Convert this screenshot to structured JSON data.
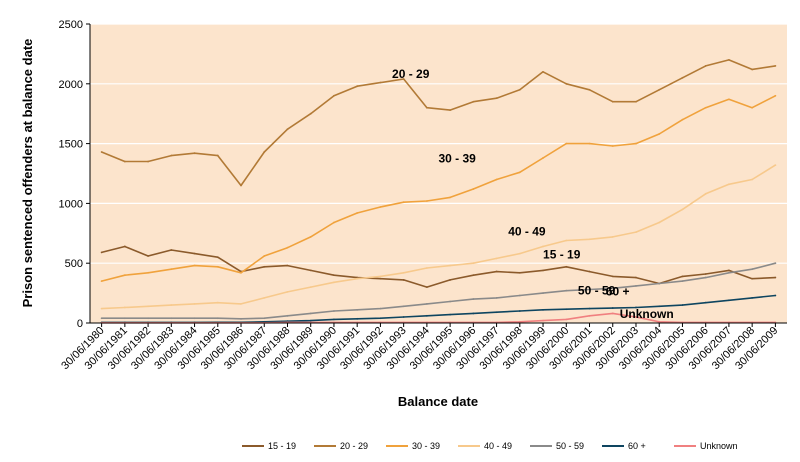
{
  "chart_data": {
    "type": "line",
    "title": "",
    "xlabel": "Balance date",
    "ylabel": "Prison sentenced offenders at balance date",
    "ylim": [
      0,
      2500
    ],
    "yticks": [
      0,
      500,
      1000,
      1500,
      2000,
      2500
    ],
    "grid": true,
    "legend_position": "bottom",
    "x": [
      "30/06/1980",
      "30/06/1981",
      "30/06/1982",
      "30/06/1983",
      "30/06/1984",
      "30/06/1985",
      "30/06/1986",
      "30/06/1987",
      "30/06/1988",
      "30/06/1989",
      "30/06/1990",
      "30/06/1991",
      "30/06/1992",
      "30/06/1993",
      "30/06/1994",
      "30/06/1995",
      "30/06/1996",
      "30/06/1997",
      "30/06/1998",
      "30/06/1999",
      "30/06/2000",
      "30/06/2001",
      "30/06/2002",
      "30/06/2003",
      "30/06/2004",
      "30/06/2005",
      "30/06/2006",
      "30/06/2007",
      "30/06/2008",
      "30/06/2009"
    ],
    "series": [
      {
        "name": "15 - 19",
        "label": "15 - 19",
        "color": "#8B5A2B",
        "values": [
          590,
          640,
          560,
          610,
          580,
          550,
          430,
          470,
          480,
          440,
          400,
          380,
          370,
          360,
          300,
          360,
          400,
          430,
          420,
          440,
          470,
          430,
          390,
          380,
          330,
          390,
          410,
          440,
          370,
          380
        ]
      },
      {
        "name": "20 - 29",
        "label": "20 - 29",
        "color": "#B27A36",
        "values": [
          1430,
          1350,
          1350,
          1400,
          1420,
          1400,
          1150,
          1430,
          1620,
          1750,
          1900,
          1980,
          2010,
          2040,
          1800,
          1780,
          1850,
          1880,
          1950,
          2100,
          2000,
          1950,
          1850,
          1850,
          1950,
          2050,
          2150,
          2200,
          2120,
          2150
        ]
      },
      {
        "name": "30 - 39",
        "label": "30 - 39",
        "color": "#F0A23C",
        "values": [
          350,
          400,
          420,
          450,
          480,
          470,
          420,
          560,
          630,
          720,
          840,
          920,
          970,
          1010,
          1020,
          1050,
          1120,
          1200,
          1260,
          1380,
          1500,
          1500,
          1480,
          1500,
          1580,
          1700,
          1800,
          1870,
          1800,
          1900
        ]
      },
      {
        "name": "40 - 49",
        "label": "40 - 49",
        "color": "#F7C98C",
        "values": [
          120,
          130,
          140,
          150,
          160,
          170,
          160,
          210,
          260,
          300,
          340,
          370,
          390,
          420,
          460,
          480,
          500,
          540,
          580,
          640,
          690,
          700,
          720,
          760,
          840,
          950,
          1080,
          1160,
          1200,
          1320
        ]
      },
      {
        "name": "50 - 59",
        "label": "50 - 59",
        "color": "#8A8A8A",
        "values": [
          40,
          40,
          40,
          40,
          40,
          40,
          35,
          40,
          60,
          80,
          100,
          110,
          120,
          140,
          160,
          180,
          200,
          210,
          230,
          250,
          270,
          280,
          290,
          310,
          330,
          350,
          380,
          420,
          450,
          500
        ]
      },
      {
        "name": "60 +",
        "label": "60 +",
        "color": "#0E4560",
        "values": [
          5,
          5,
          5,
          5,
          5,
          6,
          6,
          10,
          15,
          20,
          30,
          35,
          40,
          50,
          60,
          70,
          80,
          90,
          100,
          110,
          115,
          120,
          125,
          130,
          140,
          150,
          170,
          190,
          210,
          230
        ]
      },
      {
        "name": "Unknown",
        "label": "Unknown",
        "color": "#F08080",
        "values": [
          2,
          2,
          2,
          2,
          2,
          2,
          2,
          2,
          5,
          5,
          5,
          5,
          5,
          5,
          5,
          5,
          5,
          5,
          10,
          20,
          30,
          60,
          80,
          50,
          10,
          5,
          5,
          5,
          5,
          5
        ]
      }
    ],
    "series_labels": [
      {
        "series": "20 - 29",
        "text": "20 - 29",
        "x_index": 12.5,
        "y": 2050
      },
      {
        "series": "30 - 39",
        "text": "30 - 39",
        "x_index": 14.5,
        "y": 1340
      },
      {
        "series": "40 - 49",
        "text": "40 - 49",
        "x_index": 17.5,
        "y": 730
      },
      {
        "series": "15 - 19",
        "text": "15 - 19",
        "x_index": 19.0,
        "y": 540
      },
      {
        "series": "50 - 59",
        "text": "50 - 59",
        "x_index": 20.5,
        "y": 240
      },
      {
        "series": "60 +",
        "text": "60 +",
        "x_index": 21.7,
        "y": 230
      },
      {
        "series": "Unknown",
        "text": "Unknown",
        "x_index": 22.3,
        "y": 40
      }
    ]
  }
}
